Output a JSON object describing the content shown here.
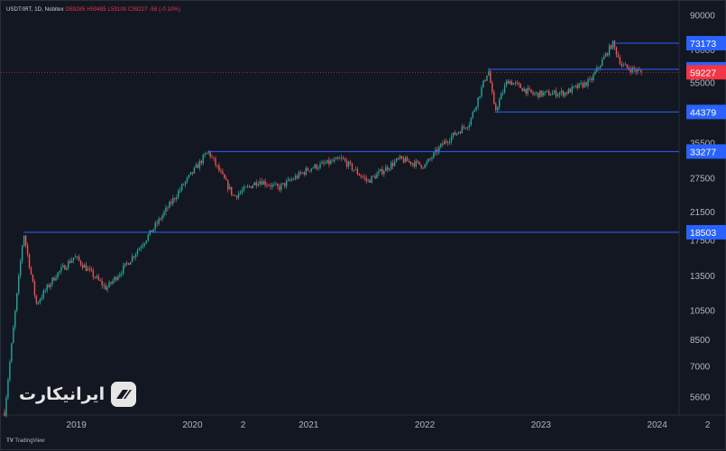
{
  "header": {
    "symbol": "USDT/IRT, 1D, Nobitex",
    "open": "O59285",
    "high": "H59485",
    "low": "L59100",
    "close": "C59227",
    "change": "-58 (-0.10%)"
  },
  "footer": {
    "brand": "TradingView"
  },
  "watermark": {
    "text": "ایرانیکارت"
  },
  "colors": {
    "background": "#131722",
    "grid": "#1e222d",
    "up": "#26a69a",
    "down": "#ef5350",
    "level_line": "#2962ff",
    "level_label_bg": "#2962ff",
    "price_label_bg": "#f23645",
    "axis_text": "#b2b5be"
  },
  "chart_data": {
    "type": "candlestick",
    "title": "USDT/IRT, 1D, Nobitex",
    "scale": "log",
    "ylim": [
      4900,
      92000
    ],
    "x_tick_labels": [
      "2019",
      "2020",
      "2",
      "2021",
      "2022",
      "2023",
      "2024",
      "2"
    ],
    "y_tick_labels": [
      90000,
      70000,
      55000,
      35500,
      27500,
      21500,
      17500,
      13500,
      10500,
      8500,
      7000,
      5600
    ],
    "last_price": 59227,
    "level_labels": [
      73173,
      60531,
      44379,
      33277,
      18503
    ],
    "price_path": [
      {
        "t": 0.0,
        "price": 5000
      },
      {
        "t": 0.03,
        "price": 18503
      },
      {
        "t": 0.05,
        "price": 11000
      },
      {
        "t": 0.08,
        "price": 13500
      },
      {
        "t": 0.11,
        "price": 15500
      },
      {
        "t": 0.16,
        "price": 12300
      },
      {
        "t": 0.19,
        "price": 14500
      },
      {
        "t": 0.23,
        "price": 18500
      },
      {
        "t": 0.28,
        "price": 26000
      },
      {
        "t": 0.32,
        "price": 33277
      },
      {
        "t": 0.36,
        "price": 24000
      },
      {
        "t": 0.4,
        "price": 27000
      },
      {
        "t": 0.43,
        "price": 25500
      },
      {
        "t": 0.48,
        "price": 29500
      },
      {
        "t": 0.53,
        "price": 31500
      },
      {
        "t": 0.57,
        "price": 26800
      },
      {
        "t": 0.62,
        "price": 31500
      },
      {
        "t": 0.66,
        "price": 30000
      },
      {
        "t": 0.69,
        "price": 35500
      },
      {
        "t": 0.73,
        "price": 41000
      },
      {
        "t": 0.76,
        "price": 60531
      },
      {
        "t": 0.77,
        "price": 44379
      },
      {
        "t": 0.79,
        "price": 56000
      },
      {
        "t": 0.83,
        "price": 50500
      },
      {
        "t": 0.88,
        "price": 51000
      },
      {
        "t": 0.92,
        "price": 55500
      },
      {
        "t": 0.955,
        "price": 73173
      },
      {
        "t": 0.97,
        "price": 62000
      },
      {
        "t": 1.0,
        "price": 59227
      }
    ],
    "levels": [
      {
        "price": 73173,
        "t_start": 0.955
      },
      {
        "price": 60531,
        "t_start": 0.76
      },
      {
        "price": 44379,
        "t_start": 0.77
      },
      {
        "price": 33277,
        "t_start": 0.32
      },
      {
        "price": 18503,
        "t_start": 0.03
      }
    ],
    "grid": false
  }
}
